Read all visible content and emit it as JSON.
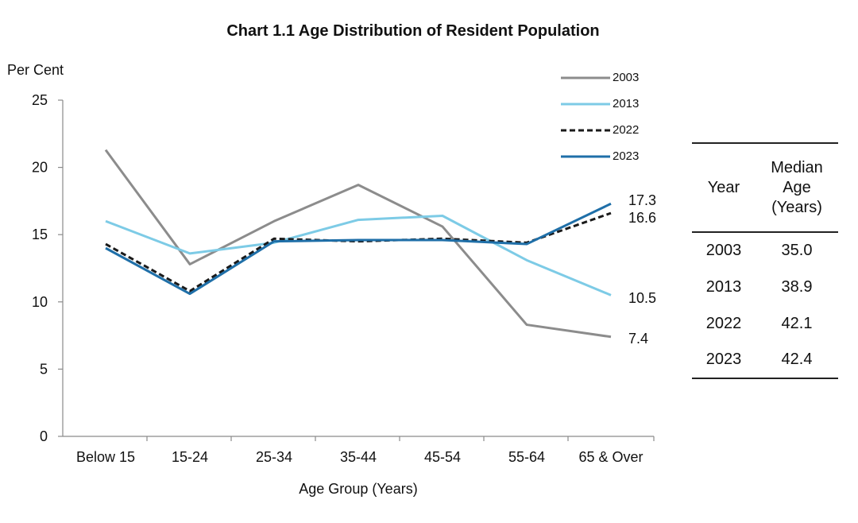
{
  "chart_data": {
    "type": "line",
    "title": "Chart 1.1  Age Distribution of Resident Population",
    "ylabel": "Per Cent",
    "xlabel": "Age Group (Years)",
    "ylim": [
      0,
      25
    ],
    "yticks": [
      "0",
      "5",
      "10",
      "15",
      "20",
      "25"
    ],
    "categories": [
      "Below 15",
      "15-24",
      "25-34",
      "35-44",
      "45-54",
      "55-64",
      "65 & Over"
    ],
    "grid": false,
    "legend_position": "top-right",
    "series": [
      {
        "name": "2003",
        "color": "#8c8c8c",
        "dash": "solid",
        "values": [
          21.3,
          12.8,
          16.0,
          18.7,
          15.6,
          8.3,
          7.4
        ],
        "end_label": "7.4"
      },
      {
        "name": "2013",
        "color": "#7dcbe6",
        "dash": "solid",
        "values": [
          16.0,
          13.6,
          14.4,
          16.1,
          16.4,
          13.1,
          10.5
        ],
        "end_label": "10.5"
      },
      {
        "name": "2022",
        "color": "#1a1a1a",
        "dash": "dashed",
        "values": [
          14.3,
          10.8,
          14.7,
          14.5,
          14.7,
          14.4,
          16.6
        ],
        "end_label": "16.6"
      },
      {
        "name": "2023",
        "color": "#1f6fa8",
        "dash": "solid",
        "values": [
          14.0,
          10.6,
          14.5,
          14.6,
          14.6,
          14.3,
          17.3
        ],
        "end_label": "17.3"
      }
    ]
  },
  "median_table": {
    "headers": [
      "Year",
      "Median\nAge\n(Years)"
    ],
    "rows": [
      [
        "2003",
        "35.0"
      ],
      [
        "2013",
        "38.9"
      ],
      [
        "2022",
        "42.1"
      ],
      [
        "2023",
        "42.4"
      ]
    ]
  }
}
